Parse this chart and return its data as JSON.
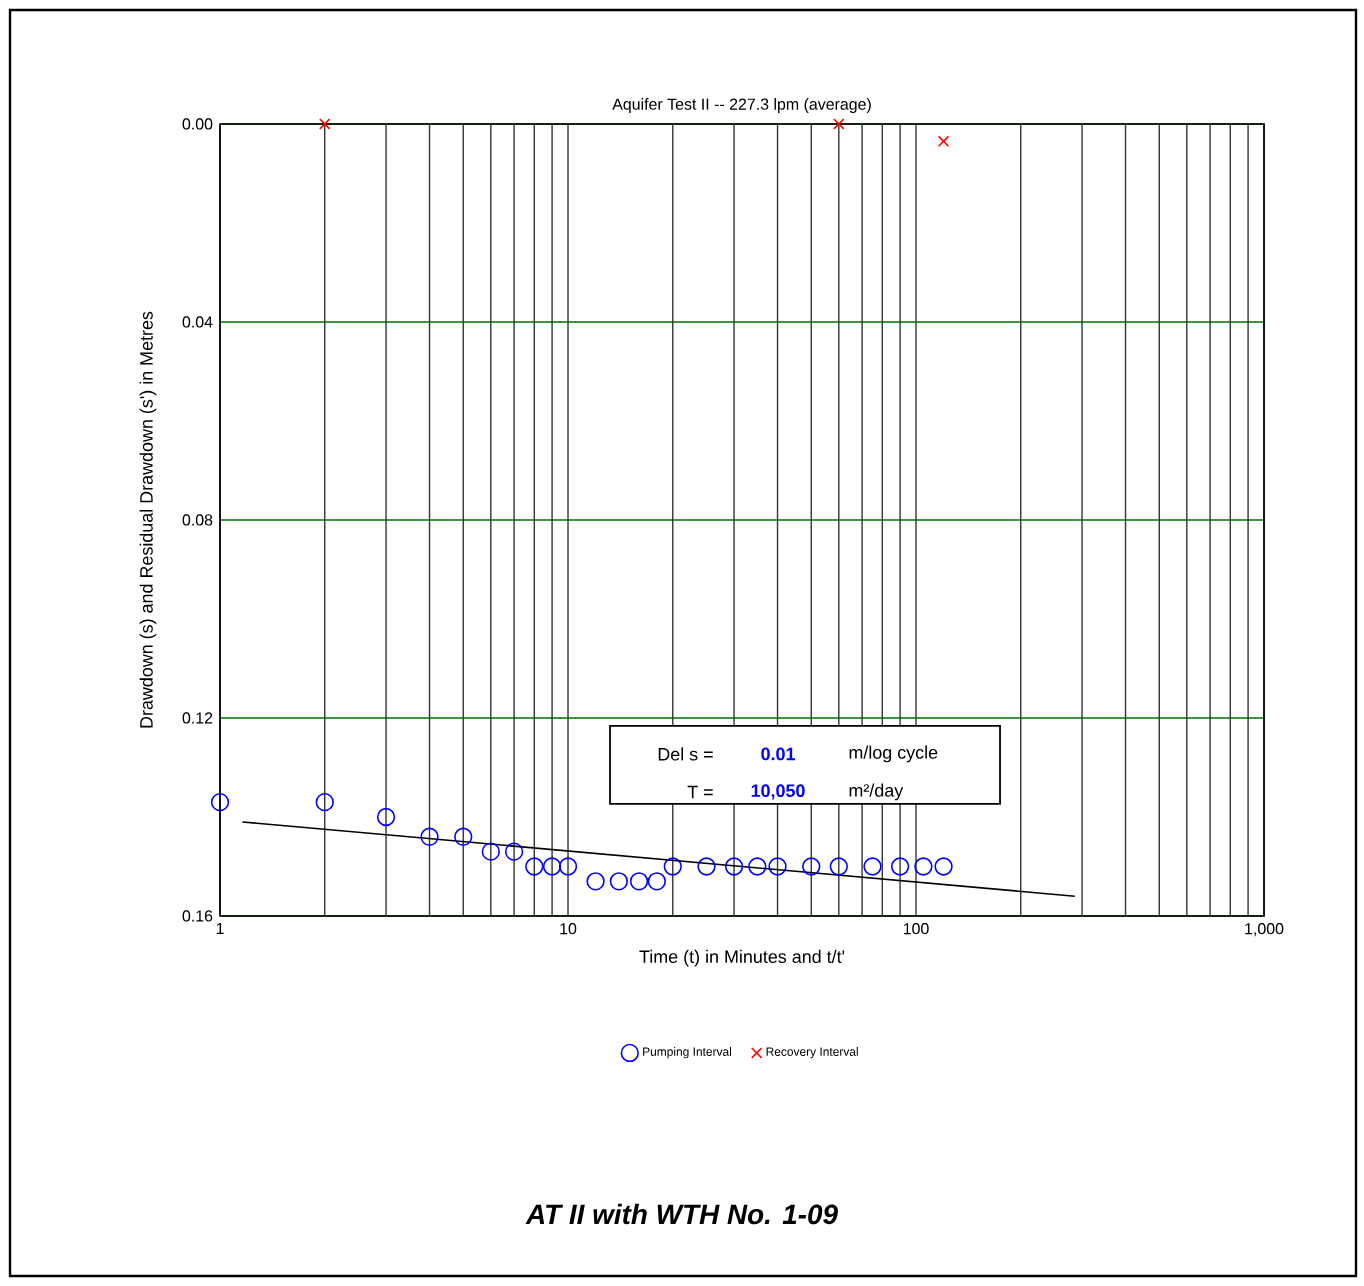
{
  "chart_data": {
    "type": "scatter",
    "title": "Aquifer Test II -- 227.3 lpm (average)",
    "xlabel": "Time (t) in Minutes and t/t'",
    "ylabel": "Drawdown (s) and Residual Drawdown (s') in Metres",
    "log": "x",
    "grid": true,
    "legend": "bottom",
    "xlim": [
      1,
      1000
    ],
    "ylim": [
      0.16,
      0
    ],
    "xticks": [
      1,
      {
        "value": 2,
        "label": null
      },
      {
        "value": 3,
        "label": null
      },
      {
        "value": 4,
        "label": null
      },
      {
        "value": 5,
        "label": null
      },
      {
        "value": 6,
        "label": null
      },
      {
        "value": 7,
        "label": null
      },
      {
        "value": 8,
        "label": null
      },
      {
        "value": 9,
        "label": null
      },
      10,
      {
        "value": 20,
        "label": null
      },
      {
        "value": 30,
        "label": null
      },
      {
        "value": 40,
        "label": null
      },
      {
        "value": 50,
        "label": null
      },
      {
        "value": 60,
        "label": null
      },
      {
        "value": 70,
        "label": null
      },
      {
        "value": 80,
        "label": null
      },
      {
        "value": 90,
        "label": null
      },
      100,
      {
        "value": 200,
        "label": null
      },
      {
        "value": 300,
        "label": null
      },
      {
        "value": 400,
        "label": null
      },
      {
        "value": 500,
        "label": null
      },
      {
        "value": 600,
        "label": null
      },
      {
        "value": 700,
        "label": null
      },
      {
        "value": 800,
        "label": null
      },
      {
        "value": 900,
        "label": null
      },
      {
        "value": 1000,
        "label": "1,000"
      }
    ],
    "yticks": [
      {
        "value": 0,
        "label": "0.00"
      },
      {
        "value": 0.04,
        "label": "0.04"
      },
      {
        "value": 0.08,
        "label": "0.08"
      },
      {
        "value": 0.12,
        "label": "0.12"
      },
      {
        "value": 0.16,
        "label": "0.16"
      }
    ],
    "series": [
      {
        "name": "Pumping Interval",
        "type": "scatter",
        "marker": "circle",
        "color": "#0000ff",
        "x": [
          1,
          2,
          3,
          4,
          5,
          6,
          7,
          8,
          9,
          10,
          12,
          14,
          16,
          18,
          20,
          25,
          30,
          35,
          40,
          50,
          60,
          75,
          90,
          105,
          120
        ],
        "values": [
          0.137,
          0.137,
          0.14,
          0.144,
          0.144,
          0.147,
          0.147,
          0.15,
          0.15,
          0.15,
          0.153,
          0.153,
          0.153,
          0.153,
          0.15,
          0.15,
          0.15,
          0.15,
          0.15,
          0.15,
          0.15,
          0.15,
          0.15,
          0.15,
          0.15
        ]
      },
      {
        "name": "Recovery Interval",
        "type": "scatter",
        "marker": "cross",
        "color": "#ff0000",
        "x": [
          2,
          60,
          120
        ],
        "values": [
          0,
          0,
          0.0035
        ]
      },
      {
        "type": "line",
        "marker": "none",
        "line_style": "solid",
        "color": "#000000",
        "x": [
          1.16,
          286
        ],
        "values": [
          0.141,
          0.156
        ]
      }
    ],
    "annotations": [
      "Del s =",
      "0.01",
      "m/log cycle",
      "T =",
      "10,050",
      "m²/day",
      "AT II with WTH No. 1-09"
    ]
  }
}
